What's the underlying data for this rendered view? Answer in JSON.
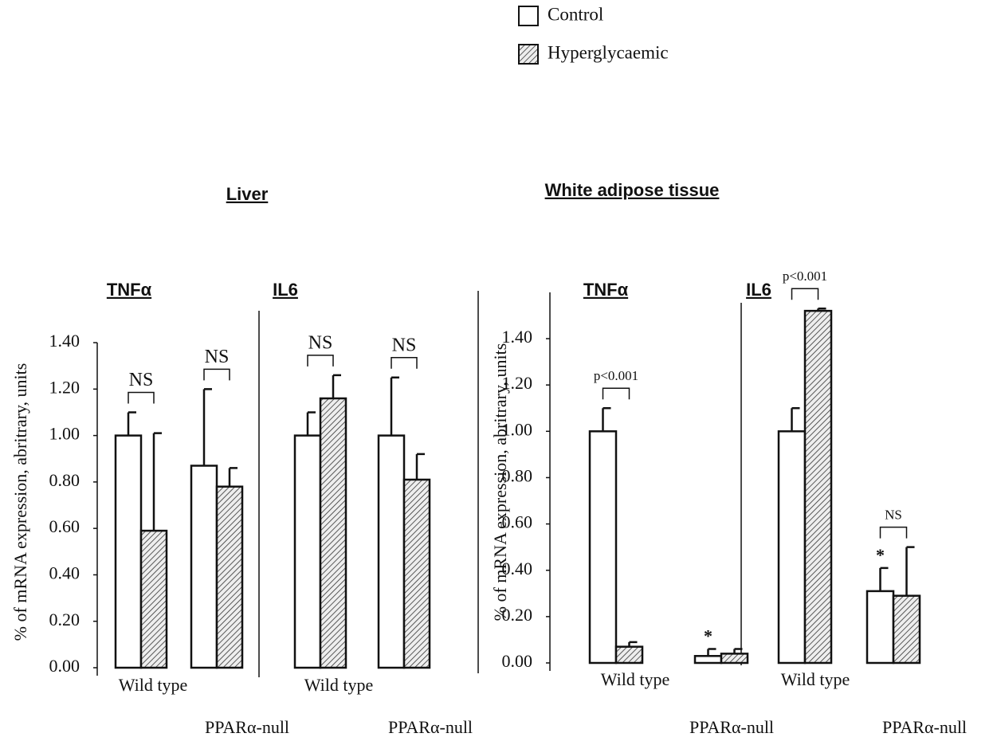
{
  "legend": [
    {
      "name": "Control",
      "color": "#ffffff"
    },
    {
      "name": "Hyperglycaemic",
      "color": "hatch"
    }
  ],
  "chart_data": [
    {
      "type": "bar",
      "title": "Liver",
      "ylabel": "% of mRNA expression, abritrary, units",
      "groups": [
        "TNFα",
        "IL6"
      ],
      "categories": [
        "Wild type",
        "PPARα-null",
        "Wild type",
        "PPARα-null"
      ],
      "series": [
        {
          "name": "Control",
          "color": "#ffffff",
          "values": [
            1.0,
            0.87,
            1.0,
            1.0
          ],
          "errors": [
            0.1,
            0.33,
            0.1,
            0.25
          ],
          "flags": [
            null,
            null,
            null,
            null
          ]
        },
        {
          "name": "Hyperglycaemic",
          "color": "hatch",
          "values": [
            0.59,
            0.78,
            1.16,
            0.81
          ],
          "errors": [
            0.42,
            0.08,
            0.1,
            0.11
          ],
          "flags": [
            null,
            null,
            null,
            null
          ]
        }
      ],
      "pair_labels": [
        "NS",
        "NS",
        "NS",
        "NS"
      ],
      "ylim": [
        0,
        1.4
      ],
      "yticks": [
        {
          "value": 0,
          "label": "0.00"
        },
        {
          "value": 0.2,
          "label": "0.20"
        },
        {
          "value": 0.4,
          "label": "0.40"
        },
        {
          "value": 0.6,
          "label": "0.60"
        },
        {
          "value": 0.8,
          "label": "0.80"
        },
        {
          "value": 1.0,
          "label": "1.00"
        },
        {
          "value": 1.2,
          "label": "1.20"
        },
        {
          "value": 1.4,
          "label": "1.40"
        }
      ]
    },
    {
      "type": "bar",
      "title": "White adipose tissue",
      "ylabel": "% of mRNA expression, abritrary, units",
      "groups": [
        "TNFα",
        "IL6"
      ],
      "categories": [
        "Wild type",
        "PPARα-null",
        "Wild type",
        "PPARα-null"
      ],
      "series": [
        {
          "name": "Control",
          "color": "#ffffff",
          "values": [
            1.0,
            0.03,
            1.0,
            0.31
          ],
          "errors": [
            0.1,
            0.03,
            0.1,
            0.1
          ],
          "flags": [
            null,
            "*",
            null,
            "*"
          ]
        },
        {
          "name": "Hyperglycaemic",
          "color": "hatch",
          "values": [
            0.07,
            0.04,
            1.52,
            0.29
          ],
          "errors": [
            0.02,
            0.02,
            0.01,
            0.21
          ],
          "flags": [
            null,
            null,
            null,
            null
          ]
        }
      ],
      "pair_labels": [
        "p<0.001",
        null,
        "p<0.001",
        "NS"
      ],
      "ylim": [
        0,
        1.6
      ],
      "yticks": [
        {
          "value": 0,
          "label": "0.00"
        },
        {
          "value": 0.2,
          "label": "0.20"
        },
        {
          "value": 0.4,
          "label": "0.40"
        },
        {
          "value": 0.6,
          "label": "0.60"
        },
        {
          "value": 0.8,
          "label": "0.80"
        },
        {
          "value": 1.0,
          "label": "1.00"
        },
        {
          "value": 1.2,
          "label": "1.20"
        },
        {
          "value": 1.4,
          "label": "1.40"
        }
      ]
    }
  ]
}
